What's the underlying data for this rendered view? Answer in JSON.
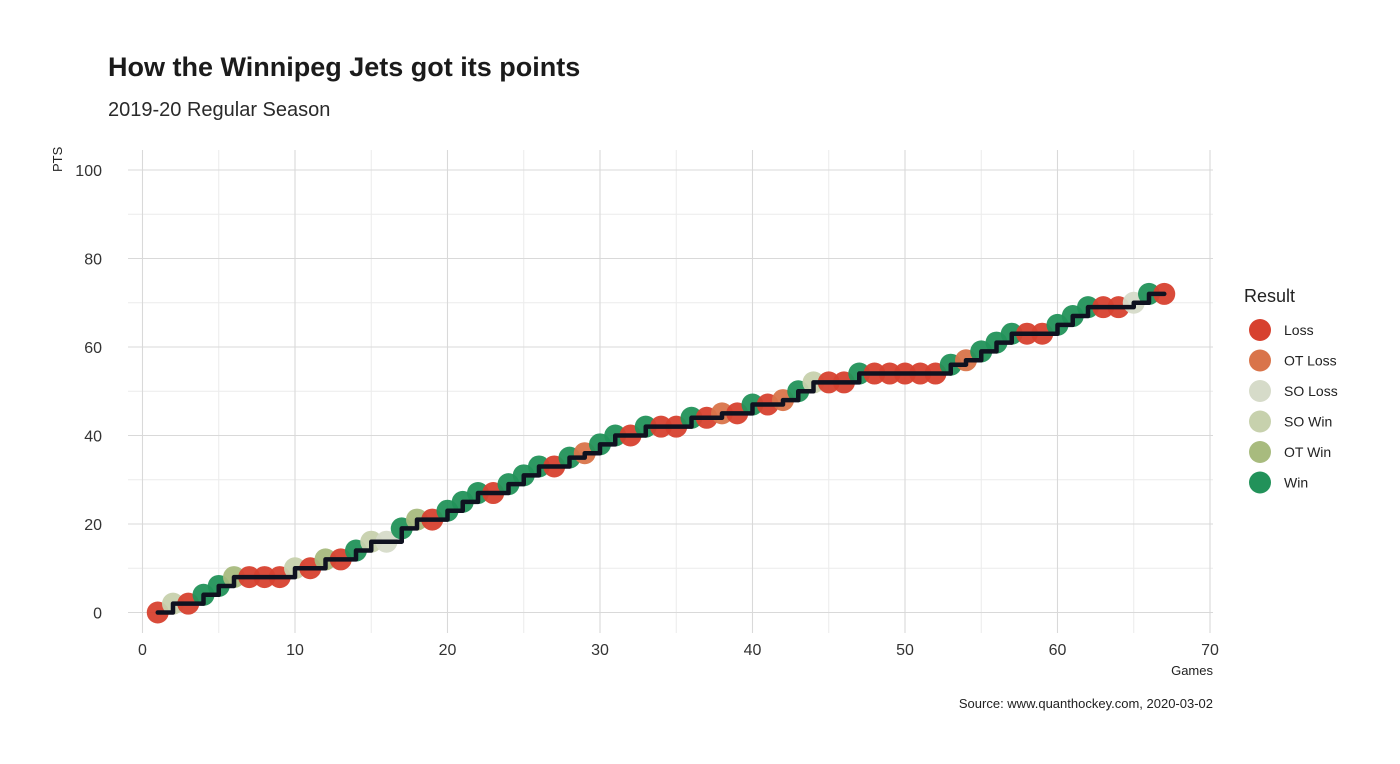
{
  "chart_data": {
    "type": "scatter",
    "title": "How the Winnipeg Jets got its points",
    "subtitle": "2019-20 Regular Season",
    "xlabel": "Games",
    "ylabel": "PTS",
    "caption": "Source: www.quanthockey.com, 2020-03-02",
    "xlim": [
      0,
      70
    ],
    "ylim": [
      0,
      100
    ],
    "x_ticks": [
      "0",
      "10",
      "20",
      "30",
      "40",
      "50",
      "60",
      "70"
    ],
    "y_ticks": [
      "0",
      "20",
      "40",
      "60",
      "80",
      "100"
    ],
    "grid": true,
    "legend": {
      "title": "Result",
      "position": "right",
      "entries": [
        {
          "label": "Loss",
          "color": "#d7412f"
        },
        {
          "label": "OT Loss",
          "color": "#d9744a"
        },
        {
          "label": "SO Loss",
          "color": "#d6dbc9"
        },
        {
          "label": "SO Win",
          "color": "#c7d1ad"
        },
        {
          "label": "OT Win",
          "color": "#a8bb7e"
        },
        {
          "label": "Win",
          "color": "#22925a"
        }
      ]
    },
    "line_color": "#0f1220",
    "points": [
      {
        "x": 1,
        "y": 0,
        "result": "Loss"
      },
      {
        "x": 2,
        "y": 2,
        "result": "SO Win"
      },
      {
        "x": 3,
        "y": 2,
        "result": "Loss"
      },
      {
        "x": 4,
        "y": 4,
        "result": "Win"
      },
      {
        "x": 5,
        "y": 6,
        "result": "Win"
      },
      {
        "x": 6,
        "y": 8,
        "result": "OT Win"
      },
      {
        "x": 7,
        "y": 8,
        "result": "Loss"
      },
      {
        "x": 8,
        "y": 8,
        "result": "Loss"
      },
      {
        "x": 9,
        "y": 8,
        "result": "Loss"
      },
      {
        "x": 10,
        "y": 10,
        "result": "SO Win"
      },
      {
        "x": 11,
        "y": 10,
        "result": "Loss"
      },
      {
        "x": 12,
        "y": 12,
        "result": "OT Win"
      },
      {
        "x": 13,
        "y": 12,
        "result": "Loss"
      },
      {
        "x": 14,
        "y": 14,
        "result": "Win"
      },
      {
        "x": 15,
        "y": 16,
        "result": "SO Win"
      },
      {
        "x": 16,
        "y": 16,
        "result": "SO Loss"
      },
      {
        "x": 17,
        "y": 19,
        "result": "Win"
      },
      {
        "x": 18,
        "y": 21,
        "result": "OT Win"
      },
      {
        "x": 19,
        "y": 21,
        "result": "Loss"
      },
      {
        "x": 20,
        "y": 23,
        "result": "Win"
      },
      {
        "x": 21,
        "y": 25,
        "result": "Win"
      },
      {
        "x": 22,
        "y": 27,
        "result": "Win"
      },
      {
        "x": 23,
        "y": 27,
        "result": "Loss"
      },
      {
        "x": 24,
        "y": 29,
        "result": "Win"
      },
      {
        "x": 25,
        "y": 31,
        "result": "Win"
      },
      {
        "x": 26,
        "y": 33,
        "result": "Win"
      },
      {
        "x": 27,
        "y": 33,
        "result": "Loss"
      },
      {
        "x": 28,
        "y": 35,
        "result": "Win"
      },
      {
        "x": 29,
        "y": 36,
        "result": "OT Loss"
      },
      {
        "x": 30,
        "y": 38,
        "result": "Win"
      },
      {
        "x": 31,
        "y": 40,
        "result": "Win"
      },
      {
        "x": 32,
        "y": 40,
        "result": "Loss"
      },
      {
        "x": 33,
        "y": 42,
        "result": "Win"
      },
      {
        "x": 34,
        "y": 42,
        "result": "Loss"
      },
      {
        "x": 35,
        "y": 42,
        "result": "Loss"
      },
      {
        "x": 36,
        "y": 44,
        "result": "Win"
      },
      {
        "x": 37,
        "y": 44,
        "result": "Loss"
      },
      {
        "x": 38,
        "y": 45,
        "result": "OT Loss"
      },
      {
        "x": 39,
        "y": 45,
        "result": "Loss"
      },
      {
        "x": 40,
        "y": 47,
        "result": "Win"
      },
      {
        "x": 41,
        "y": 47,
        "result": "Loss"
      },
      {
        "x": 42,
        "y": 48,
        "result": "OT Loss"
      },
      {
        "x": 43,
        "y": 50,
        "result": "Win"
      },
      {
        "x": 44,
        "y": 52,
        "result": "SO Win"
      },
      {
        "x": 45,
        "y": 52,
        "result": "Loss"
      },
      {
        "x": 46,
        "y": 52,
        "result": "Loss"
      },
      {
        "x": 47,
        "y": 54,
        "result": "Win"
      },
      {
        "x": 48,
        "y": 54,
        "result": "Loss"
      },
      {
        "x": 49,
        "y": 54,
        "result": "Loss"
      },
      {
        "x": 50,
        "y": 54,
        "result": "Loss"
      },
      {
        "x": 51,
        "y": 54,
        "result": "Loss"
      },
      {
        "x": 52,
        "y": 54,
        "result": "Loss"
      },
      {
        "x": 53,
        "y": 56,
        "result": "Win"
      },
      {
        "x": 54,
        "y": 57,
        "result": "OT Loss"
      },
      {
        "x": 55,
        "y": 59,
        "result": "Win"
      },
      {
        "x": 56,
        "y": 61,
        "result": "Win"
      },
      {
        "x": 57,
        "y": 63,
        "result": "Win"
      },
      {
        "x": 58,
        "y": 63,
        "result": "Loss"
      },
      {
        "x": 59,
        "y": 63,
        "result": "Loss"
      },
      {
        "x": 60,
        "y": 65,
        "result": "Win"
      },
      {
        "x": 61,
        "y": 67,
        "result": "Win"
      },
      {
        "x": 62,
        "y": 69,
        "result": "Win"
      },
      {
        "x": 63,
        "y": 69,
        "result": "Loss"
      },
      {
        "x": 64,
        "y": 69,
        "result": "Loss"
      },
      {
        "x": 65,
        "y": 70,
        "result": "SO Loss"
      },
      {
        "x": 66,
        "y": 72,
        "result": "Win"
      },
      {
        "x": 67,
        "y": 72,
        "result": "Loss"
      }
    ]
  }
}
